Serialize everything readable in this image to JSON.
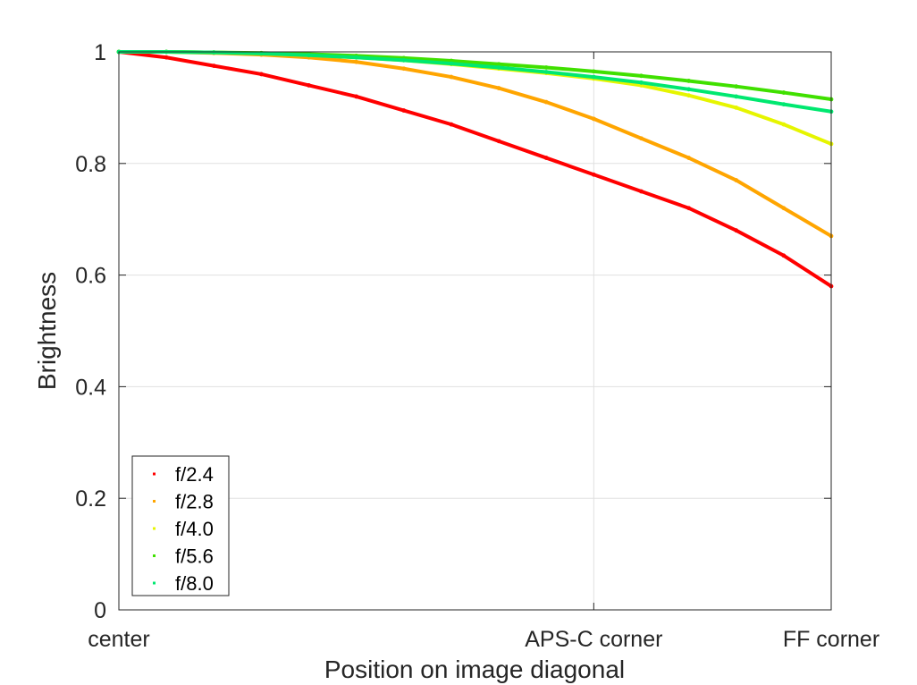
{
  "chart_data": {
    "type": "scatter",
    "xlabel": "Position on image diagonal",
    "ylabel": "Brightness",
    "xlim": [
      0,
      1.5
    ],
    "ylim": [
      0,
      1
    ],
    "x_ticks": [
      {
        "value": 0,
        "label": "center"
      },
      {
        "value": 1,
        "label": "APS-C corner"
      },
      {
        "value": 1.5,
        "label": "FF corner"
      }
    ],
    "y_ticks": [
      {
        "value": 0,
        "label": "0"
      },
      {
        "value": 0.2,
        "label": "0.2"
      },
      {
        "value": 0.4,
        "label": "0.4"
      },
      {
        "value": 0.6,
        "label": "0.6"
      },
      {
        "value": 0.8,
        "label": "0.8"
      },
      {
        "value": 1,
        "label": "1"
      }
    ],
    "grid": true,
    "legend_position": "bottom-left",
    "series": [
      {
        "name": "f/2.4",
        "color": "#ff0000",
        "x": [
          0,
          0.1,
          0.2,
          0.3,
          0.4,
          0.5,
          0.6,
          0.7,
          0.8,
          0.9,
          1.0,
          1.1,
          1.2,
          1.3,
          1.4,
          1.5
        ],
        "y": [
          1.0,
          0.99,
          0.975,
          0.96,
          0.94,
          0.92,
          0.895,
          0.87,
          0.84,
          0.81,
          0.78,
          0.75,
          0.72,
          0.68,
          0.635,
          0.58
        ]
      },
      {
        "name": "f/2.8",
        "color": "#ffa500",
        "x": [
          0,
          0.1,
          0.2,
          0.3,
          0.4,
          0.5,
          0.6,
          0.7,
          0.8,
          0.9,
          1.0,
          1.1,
          1.2,
          1.3,
          1.4,
          1.5
        ],
        "y": [
          1.0,
          1.0,
          0.998,
          0.995,
          0.99,
          0.982,
          0.97,
          0.955,
          0.935,
          0.91,
          0.88,
          0.845,
          0.81,
          0.77,
          0.72,
          0.67
        ]
      },
      {
        "name": "f/4.0",
        "color": "#e6f500",
        "x": [
          0,
          0.1,
          0.2,
          0.3,
          0.4,
          0.5,
          0.6,
          0.7,
          0.8,
          0.9,
          1.0,
          1.1,
          1.2,
          1.3,
          1.4,
          1.5
        ],
        "y": [
          1.0,
          1.0,
          0.999,
          0.997,
          0.994,
          0.99,
          0.985,
          0.978,
          0.97,
          0.962,
          0.952,
          0.94,
          0.922,
          0.9,
          0.87,
          0.835
        ]
      },
      {
        "name": "f/5.6",
        "color": "#40e000",
        "x": [
          0,
          0.1,
          0.2,
          0.3,
          0.4,
          0.5,
          0.6,
          0.7,
          0.8,
          0.9,
          1.0,
          1.1,
          1.2,
          1.3,
          1.4,
          1.5
        ],
        "y": [
          1.0,
          1.0,
          0.999,
          0.998,
          0.996,
          0.993,
          0.989,
          0.984,
          0.978,
          0.972,
          0.965,
          0.957,
          0.948,
          0.938,
          0.927,
          0.915
        ]
      },
      {
        "name": "f/8.0",
        "color": "#00e870",
        "x": [
          0,
          0.1,
          0.2,
          0.3,
          0.4,
          0.5,
          0.6,
          0.7,
          0.8,
          0.9,
          1.0,
          1.1,
          1.2,
          1.3,
          1.4,
          1.5
        ],
        "y": [
          1.0,
          1.0,
          0.999,
          0.997,
          0.994,
          0.99,
          0.985,
          0.979,
          0.972,
          0.964,
          0.955,
          0.945,
          0.933,
          0.92,
          0.906,
          0.893
        ]
      }
    ]
  }
}
